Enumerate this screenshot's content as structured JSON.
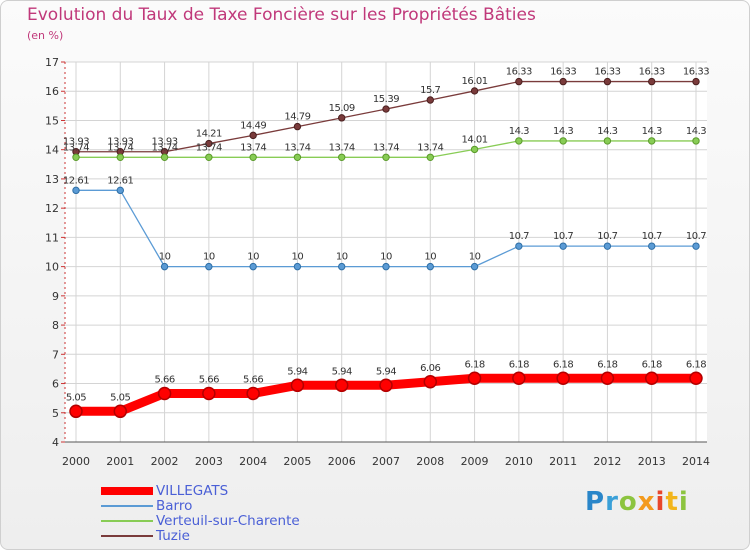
{
  "title": "Evolution du Taux de Taxe Foncière sur les Propriétés Bâties",
  "unit_label": "(en %)",
  "logo_text": "Proxiti",
  "chart_data": {
    "type": "line",
    "title": "Evolution du Taux de Taxe Foncière sur les Propriétés Bâties",
    "ylabel": "(en %)",
    "xlabel": "",
    "ylim": [
      4,
      17
    ],
    "yticks": [
      "4",
      "5",
      "6",
      "7",
      "8",
      "9",
      "10",
      "11",
      "12",
      "13",
      "14",
      "15",
      "16",
      "17"
    ],
    "categories": [
      "2000",
      "2001",
      "2002",
      "2003",
      "2004",
      "2005",
      "2006",
      "2007",
      "2008",
      "2009",
      "2010",
      "2011",
      "2012",
      "2013",
      "2014"
    ],
    "grid": true,
    "legend_position": "bottom-left",
    "series": [
      {
        "name": "VILLEGATS",
        "color": "#ff0000",
        "emphasis": true,
        "values": [
          5.05,
          5.05,
          5.66,
          5.66,
          5.66,
          5.94,
          5.94,
          5.94,
          6.06,
          6.18,
          6.18,
          6.18,
          6.18,
          6.18,
          6.18
        ],
        "labels": [
          "5.05",
          "5.05",
          "5.66",
          "5.66",
          "5.66",
          "5.94",
          "5.94",
          "5.94",
          "6.06",
          "6.18",
          "6.18",
          "6.18",
          "6.18",
          "6.18",
          "6.18"
        ]
      },
      {
        "name": "Barro",
        "color": "#5b9bd5",
        "emphasis": false,
        "values": [
          12.61,
          12.61,
          10,
          10,
          10,
          10,
          10,
          10,
          10,
          10,
          10.7,
          10.7,
          10.7,
          10.7,
          10.7
        ],
        "labels": [
          "12.61",
          "12.61",
          "10",
          "10",
          "10",
          "10",
          "10",
          "10",
          "10",
          "10",
          "10.7",
          "10.7",
          "10.7",
          "10.7",
          "10.7"
        ]
      },
      {
        "name": "Verteuil-sur-Charente",
        "color": "#88cc55",
        "emphasis": false,
        "values": [
          13.74,
          13.74,
          13.74,
          13.74,
          13.74,
          13.74,
          13.74,
          13.74,
          13.74,
          14.01,
          14.3,
          14.3,
          14.3,
          14.3,
          14.3
        ],
        "labels": [
          "13.74",
          "13.74",
          "13.74",
          "13.74",
          "13.74",
          "13.74",
          "13.74",
          "13.74",
          "13.74",
          "14.01",
          "14.3",
          "14.3",
          "14.3",
          "14.3",
          "14.3"
        ]
      },
      {
        "name": "Tuzie",
        "color": "#7a3b3b",
        "emphasis": false,
        "values": [
          13.93,
          13.93,
          13.93,
          14.21,
          14.49,
          14.79,
          15.09,
          15.39,
          15.7,
          16.01,
          16.33,
          16.33,
          16.33,
          16.33,
          16.33
        ],
        "labels": [
          "13.93",
          "13.93",
          "13.93",
          "14.21",
          "14.49",
          "14.79",
          "15.09",
          "15.39",
          "15.7",
          "16.01",
          "16.33",
          "16.33",
          "16.33",
          "16.33",
          "16.33"
        ]
      }
    ]
  }
}
